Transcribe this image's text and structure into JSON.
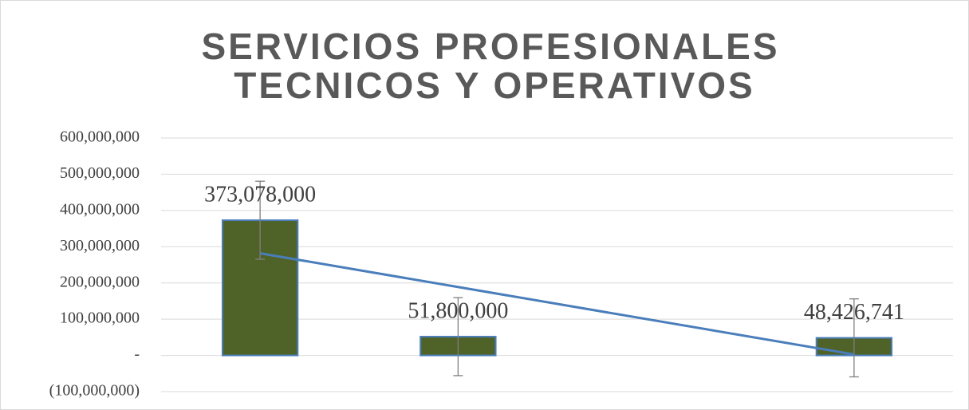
{
  "chart_data": {
    "type": "bar",
    "title": [
      "SERVICIOS PROFESIONALES",
      "TECNICOS Y OPERATIVOS"
    ],
    "categories": [
      null,
      null,
      null,
      null
    ],
    "series": [
      {
        "color": "#4f6228",
        "edge_color": "#4a7ebb",
        "values": [
          373078000,
          51800000,
          null,
          48426741
        ],
        "value_labels": [
          "373,078,000",
          "51,800,000",
          null,
          "48,426,741"
        ],
        "errors": [
          107600000,
          107600000,
          null,
          107600000
        ],
        "error_color": "#7f7f7f"
      }
    ],
    "trendline": {
      "type": "linear",
      "color": "#4a7ebb"
    },
    "ylim": [
      -100000000,
      600000000
    ],
    "yticks": [
      {
        "value": -100000000,
        "label": "(100,000,000)"
      },
      {
        "value": 0,
        "label": "-"
      },
      {
        "value": 100000000,
        "label": "100,000,000"
      },
      {
        "value": 200000000,
        "label": "200,000,000"
      },
      {
        "value": 300000000,
        "label": "300,000,000"
      },
      {
        "value": 400000000,
        "label": "400,000,000"
      },
      {
        "value": 500000000,
        "label": "500,000,000"
      },
      {
        "value": 600000000,
        "label": "600,000,000"
      }
    ],
    "grid": true
  }
}
